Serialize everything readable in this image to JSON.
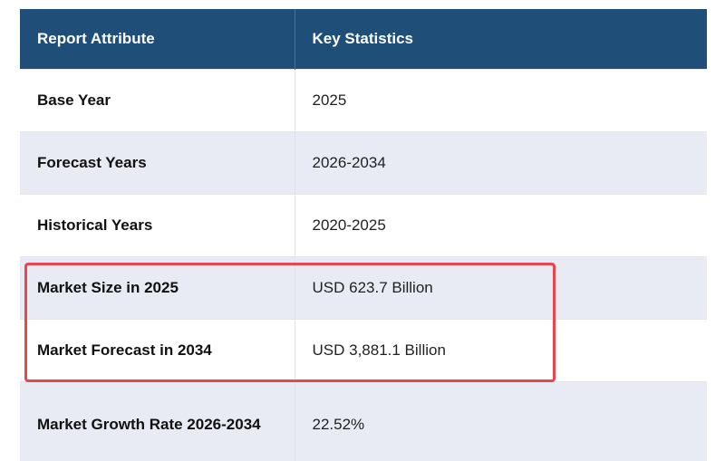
{
  "table": {
    "headers": [
      "Report Attribute",
      "Key Statistics"
    ],
    "rows": [
      {
        "attribute": "Base Year",
        "value": "2025"
      },
      {
        "attribute": "Forecast Years",
        "value": "2026-2034"
      },
      {
        "attribute": "Historical Years",
        "value": "2020-2025"
      },
      {
        "attribute": "Market Size in 2025",
        "value": "USD 623.7 Billion"
      },
      {
        "attribute": "Market Forecast in 2034",
        "value": "USD 3,881.1 Billion"
      },
      {
        "attribute": "Market Growth Rate 2026-2034",
        "value": "22.52%"
      }
    ]
  },
  "colors": {
    "header_bg": "#1f4e79",
    "stripe_bg": "#e8eaf4",
    "highlight_border": "#e8474d"
  }
}
